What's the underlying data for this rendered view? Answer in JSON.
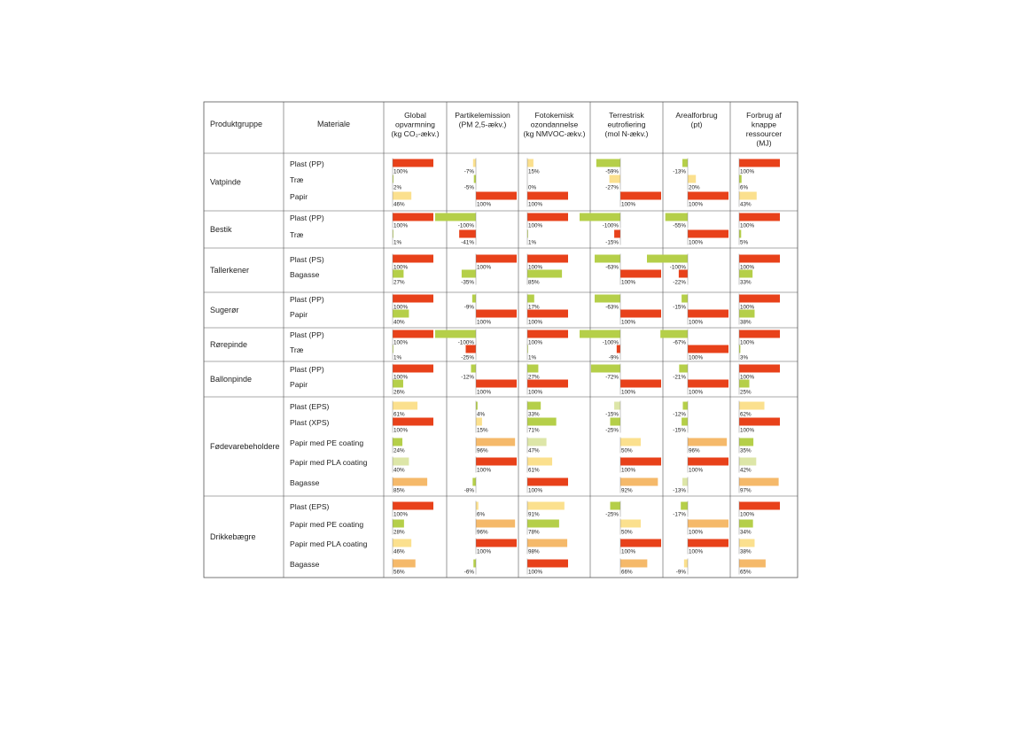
{
  "chart_data": {
    "type": "table",
    "header": {
      "product_group": "Produktgruppe",
      "material": "Materiale",
      "categories": [
        [
          "Global",
          "opvarmning",
          "(kg CO₂-ækv.)"
        ],
        [
          "Partikelemission",
          "(PM 2,5-ækv.)"
        ],
        [
          "Fotokemisk",
          "ozondannelse",
          "(kg NMVOC-ækv.)"
        ],
        [
          "Terrestrisk",
          "eutrofiering",
          "(mol N-ækv.)"
        ],
        [
          "Arealforbrug",
          "(pt)"
        ],
        [
          "Forbrug af",
          "knappe",
          "ressourcer",
          "(MJ)"
        ]
      ]
    },
    "colors": {
      "red": "#e8411a",
      "orange": "#f5b96a",
      "yellow": "#fbe08e",
      "green": "#b5cf49",
      "lightgreen": "#dde6a8",
      "grid": "#555555"
    },
    "groups": [
      {
        "name": "Vatpinde",
        "rows": [
          {
            "material": "Plast (PP)",
            "values": [
              100,
              -7,
              15,
              -59,
              -13,
              100
            ],
            "colors": [
              "red",
              "yellow",
              "yellow",
              "green",
              "green",
              "red"
            ]
          },
          {
            "material": "Træ",
            "values": [
              2,
              -5,
              0,
              -27,
              20,
              6
            ],
            "colors": [
              "green",
              "green",
              "green",
              "yellow",
              "yellow",
              "green"
            ]
          },
          {
            "material": "Papir",
            "values": [
              46,
              100,
              100,
              100,
              100,
              43
            ],
            "colors": [
              "yellow",
              "red",
              "red",
              "red",
              "red",
              "yellow"
            ]
          }
        ]
      },
      {
        "name": "Bestik",
        "rows": [
          {
            "material": "Plast (PP)",
            "values": [
              100,
              -100,
              100,
              -100,
              -55,
              100
            ],
            "colors": [
              "red",
              "green",
              "red",
              "green",
              "green",
              "red"
            ]
          },
          {
            "material": "Træ",
            "values": [
              1,
              -41,
              1,
              -15,
              100,
              5
            ],
            "colors": [
              "green",
              "red",
              "green",
              "red",
              "red",
              "green"
            ]
          }
        ]
      },
      {
        "name": "Tallerkener",
        "rows": [
          {
            "material": "Plast (PS)",
            "values": [
              100,
              100,
              100,
              -63,
              -100,
              100
            ],
            "colors": [
              "red",
              "red",
              "red",
              "green",
              "green",
              "red"
            ]
          },
          {
            "material": "Bagasse",
            "values": [
              27,
              -35,
              85,
              100,
              -22,
              33
            ],
            "colors": [
              "green",
              "green",
              "green",
              "red",
              "red",
              "green"
            ]
          }
        ]
      },
      {
        "name": "Sugerør",
        "rows": [
          {
            "material": "Plast (PP)",
            "values": [
              100,
              -9,
              17,
              -63,
              -15,
              100
            ],
            "colors": [
              "red",
              "green",
              "green",
              "green",
              "green",
              "red"
            ]
          },
          {
            "material": "Papir",
            "values": [
              40,
              100,
              100,
              100,
              100,
              38
            ],
            "colors": [
              "green",
              "red",
              "red",
              "red",
              "red",
              "green"
            ]
          }
        ]
      },
      {
        "name": "Rørepinde",
        "rows": [
          {
            "material": "Plast (PP)",
            "values": [
              100,
              -100,
              100,
              -100,
              -67,
              100
            ],
            "colors": [
              "red",
              "green",
              "red",
              "green",
              "green",
              "red"
            ]
          },
          {
            "material": "Træ",
            "values": [
              1,
              -25,
              1,
              -9,
              100,
              3
            ],
            "colors": [
              "green",
              "red",
              "green",
              "red",
              "red",
              "green"
            ]
          }
        ]
      },
      {
        "name": "Ballonpinde",
        "rows": [
          {
            "material": "Plast (PP)",
            "values": [
              100,
              -12,
              27,
              -72,
              -21,
              100
            ],
            "colors": [
              "red",
              "green",
              "green",
              "green",
              "green",
              "red"
            ]
          },
          {
            "material": "Papir",
            "values": [
              26,
              100,
              100,
              100,
              100,
              25
            ],
            "colors": [
              "green",
              "red",
              "red",
              "red",
              "red",
              "green"
            ]
          }
        ]
      },
      {
        "name": "Fødevarebeholdere",
        "rows": [
          {
            "material": "Plast (EPS)",
            "values": [
              61,
              4,
              33,
              -15,
              -12,
              62
            ],
            "colors": [
              "yellow",
              "green",
              "green",
              "lightgreen",
              "green",
              "yellow"
            ]
          },
          {
            "material": "Plast (XPS)",
            "values": [
              100,
              15,
              71,
              -25,
              -15,
              100
            ],
            "colors": [
              "red",
              "yellow",
              "green",
              "green",
              "green",
              "red"
            ]
          },
          {
            "material": "Papir med PE coating",
            "values": [
              24,
              96,
              47,
              50,
              96,
              35
            ],
            "colors": [
              "green",
              "orange",
              "lightgreen",
              "yellow",
              "orange",
              "green"
            ]
          },
          {
            "material": "Papir med PLA coating",
            "values": [
              40,
              100,
              61,
              100,
              100,
              42
            ],
            "colors": [
              "lightgreen",
              "red",
              "yellow",
              "red",
              "red",
              "lightgreen"
            ]
          },
          {
            "material": "Bagasse",
            "values": [
              85,
              -8,
              100,
              92,
              -13,
              97
            ],
            "colors": [
              "orange",
              "green",
              "red",
              "orange",
              "lightgreen",
              "orange"
            ]
          }
        ]
      },
      {
        "name": "Drikkebægre",
        "rows": [
          {
            "material": "Plast (EPS)",
            "values": [
              100,
              6,
              91,
              -25,
              -17,
              100
            ],
            "colors": [
              "red",
              "yellow",
              "yellow",
              "green",
              "green",
              "red"
            ]
          },
          {
            "material": "Papir med PE coating",
            "values": [
              28,
              96,
              78,
              50,
              100,
              34
            ],
            "colors": [
              "green",
              "orange",
              "green",
              "yellow",
              "orange",
              "green"
            ]
          },
          {
            "material": "Papir med PLA coating",
            "values": [
              46,
              100,
              98,
              100,
              100,
              38
            ],
            "colors": [
              "yellow",
              "red",
              "orange",
              "red",
              "red",
              "yellow"
            ]
          },
          {
            "material": "Bagasse",
            "values": [
              56,
              -6,
              100,
              66,
              -9,
              65
            ],
            "colors": [
              "orange",
              "green",
              "red",
              "orange",
              "yellow",
              "orange"
            ]
          }
        ]
      }
    ]
  }
}
